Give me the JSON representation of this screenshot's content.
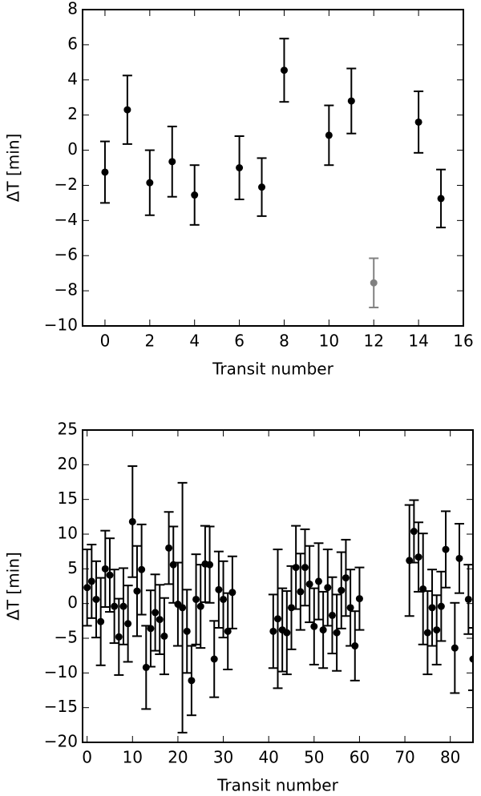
{
  "chart_data": [
    {
      "type": "errorbar",
      "xlabel": "Transit number",
      "ylabel": "ΔT [min]",
      "xlim": [
        -1,
        16
      ],
      "ylim": [
        -10,
        8
      ],
      "xticks": [
        0,
        2,
        4,
        6,
        8,
        10,
        12,
        14,
        16
      ],
      "yticks": [
        {
          "value": -10,
          "label": "−10"
        },
        {
          "value": -8,
          "label": "−8"
        },
        {
          "value": -6,
          "label": "−6"
        },
        {
          "value": -4,
          "label": "−4"
        },
        {
          "value": -2,
          "label": "−2"
        },
        0,
        2,
        4,
        6,
        8
      ],
      "series": [
        {
          "color": "#000000",
          "x": [
            0,
            1,
            2,
            3,
            4,
            6,
            7,
            8,
            10,
            11,
            14,
            15
          ],
          "values": [
            -1.25,
            2.3,
            -1.85,
            -0.65,
            -2.55,
            -1.0,
            -2.1,
            4.55,
            0.85,
            2.8,
            1.6,
            -2.75
          ],
          "errors": [
            1.75,
            1.95,
            1.85,
            2.0,
            1.7,
            1.8,
            1.65,
            1.8,
            1.7,
            1.85,
            1.75,
            1.65
          ]
        },
        {
          "color": "#808080",
          "x": [
            12
          ],
          "values": [
            -7.55
          ],
          "errors": [
            1.4
          ]
        }
      ]
    },
    {
      "type": "errorbar",
      "xlabel": "Transit number",
      "ylabel": "ΔT [min]",
      "xlim": [
        -1,
        85
      ],
      "ylim": [
        -20,
        25
      ],
      "xticks": [
        0,
        10,
        20,
        30,
        40,
        50,
        60,
        70,
        80
      ],
      "yticks": [
        {
          "value": -20,
          "label": "−20"
        },
        {
          "value": -15,
          "label": "−15"
        },
        {
          "value": -10,
          "label": "−10"
        },
        {
          "value": -5,
          "label": "−5"
        },
        0,
        5,
        10,
        15,
        20,
        25
      ],
      "series": [
        {
          "color": "#000000",
          "x": [
            0,
            1,
            2,
            3,
            4,
            5,
            6,
            7,
            8,
            9,
            10,
            11,
            12,
            13,
            14,
            15,
            16,
            17,
            18,
            19,
            20,
            21,
            22,
            23,
            24,
            25,
            26,
            27,
            28,
            29,
            30,
            31,
            32,
            41,
            42,
            43,
            44,
            45,
            46,
            47,
            48,
            49,
            50,
            51,
            52,
            53,
            54,
            55,
            56,
            57,
            58,
            59,
            60,
            71,
            72,
            73,
            74,
            75,
            76,
            77,
            78,
            79,
            81,
            82,
            84,
            85
          ],
          "values": [
            2.3,
            3.2,
            0.6,
            -2.6,
            5.0,
            4.1,
            -0.4,
            -4.8,
            -0.4,
            -2.9,
            11.8,
            1.8,
            4.9,
            -9.2,
            -3.6,
            -1.3,
            -2.3,
            -4.7,
            8.0,
            5.6,
            -0.1,
            -0.6,
            -4.0,
            -11.1,
            0.6,
            -0.4,
            5.7,
            5.6,
            -8.0,
            2.0,
            0.6,
            -4.0,
            1.6,
            -4.0,
            -2.2,
            -3.8,
            -4.2,
            -0.6,
            5.2,
            1.7,
            5.2,
            2.8,
            -3.3,
            3.2,
            -3.8,
            2.3,
            -1.7,
            -4.2,
            1.9,
            3.7,
            -0.6,
            -6.1,
            0.7,
            6.2,
            10.4,
            6.7,
            2.1,
            -4.2,
            -0.6,
            -3.8,
            -0.4,
            7.8,
            -6.4,
            6.5,
            0.6,
            -8.0
          ],
          "errors": [
            5.5,
            5.3,
            5.5,
            6.3,
            5.5,
            5.3,
            5.3,
            5.5,
            5.5,
            5.5,
            8,
            6.5,
            6.5,
            6,
            5.5,
            5.5,
            5,
            5.5,
            5.2,
            5.5,
            6,
            18,
            6,
            5,
            6.5,
            6,
            5.5,
            5.5,
            5.5,
            5.5,
            5.5,
            5.5,
            5.2,
            5.3,
            10,
            6,
            6,
            6,
            6,
            5.5,
            5.5,
            5.5,
            5.5,
            5.5,
            5.5,
            5.5,
            5.5,
            5.5,
            5.5,
            5.5,
            5.5,
            5,
            4.5,
            8,
            4.5,
            5,
            8,
            6,
            5.5,
            5,
            5,
            5.5,
            6.5,
            5,
            5,
            4.5
          ]
        }
      ]
    }
  ]
}
